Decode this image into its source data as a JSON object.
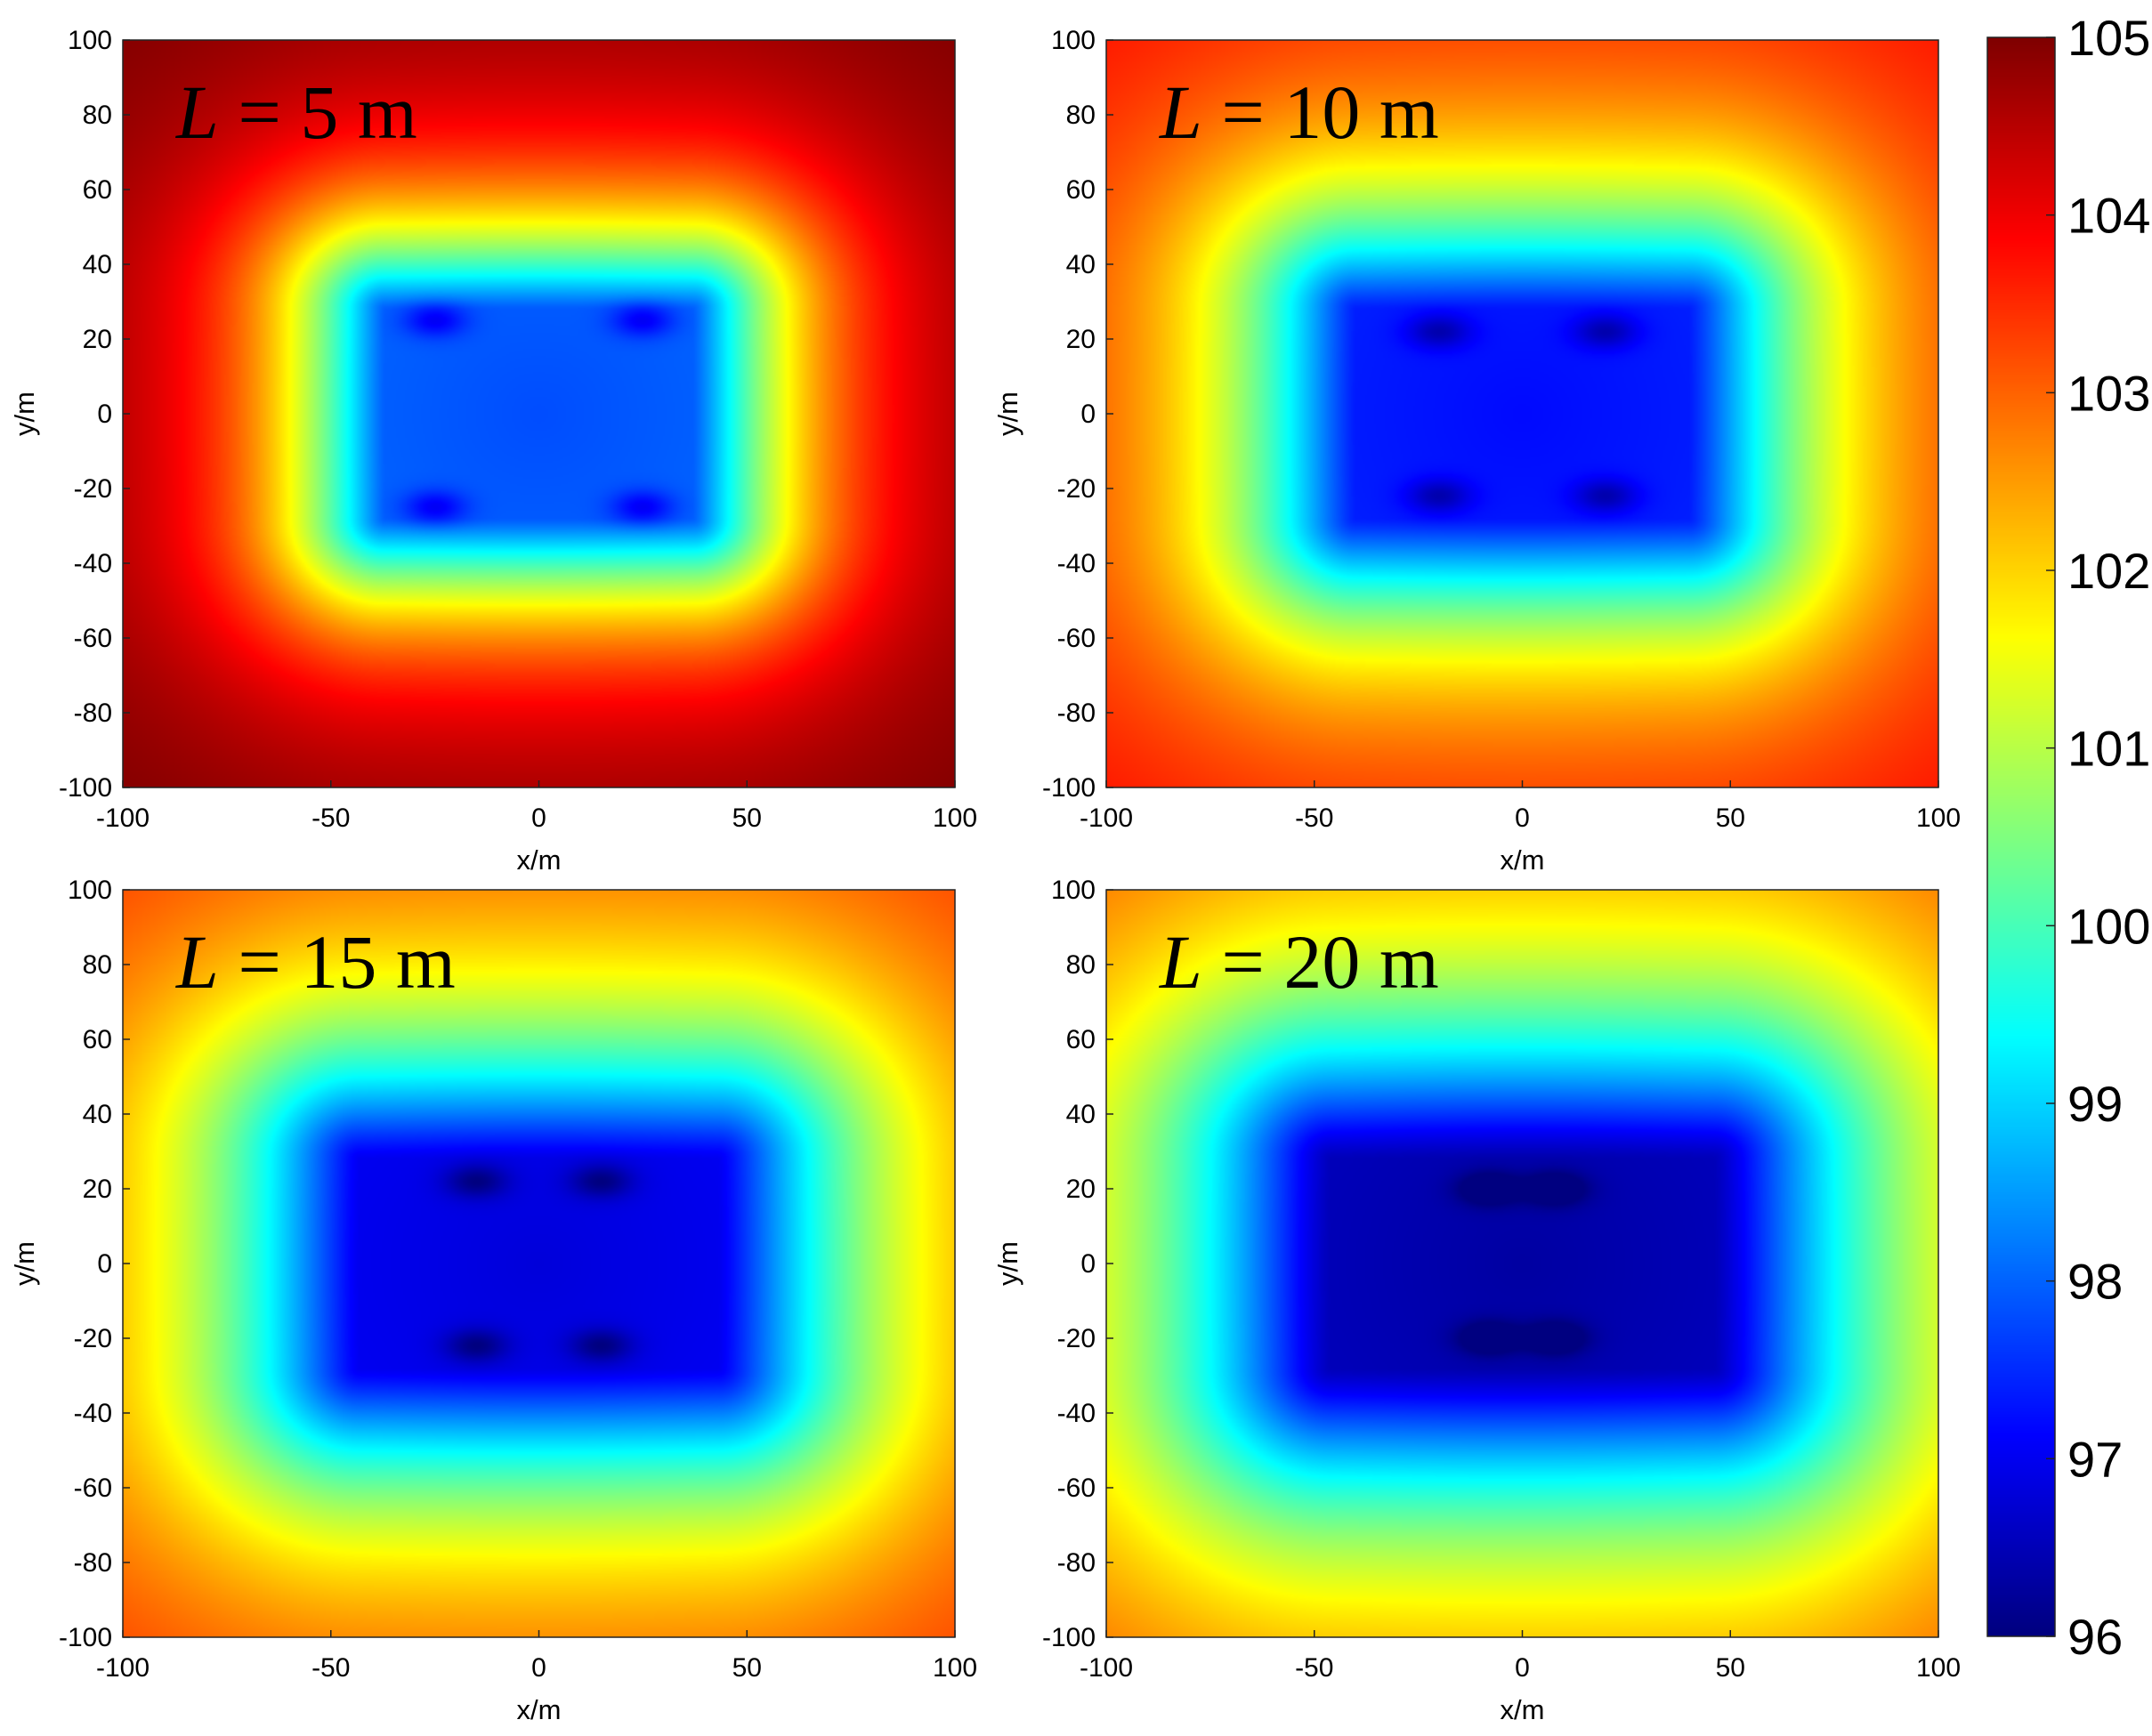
{
  "chart_data": {
    "type": "heatmap",
    "colormap": "jet",
    "colorbar": {
      "range": [
        96,
        105
      ],
      "ticks": [
        "96",
        "97",
        "98",
        "99",
        "100",
        "101",
        "102",
        "103",
        "104",
        "105"
      ]
    },
    "panels": [
      {
        "title_var": "L",
        "title_rest": " = 5 m",
        "L": 5,
        "xlabel": "x/m",
        "ylabel": "y/m",
        "xlim": [
          -100,
          100
        ],
        "ylim": [
          -100,
          100
        ],
        "xticks": [
          "-100",
          "-50",
          "0",
          "50",
          "100"
        ],
        "yticks": [
          "100",
          "80",
          "60",
          "40",
          "20",
          "0",
          "-20",
          "-40",
          "-60",
          "-80",
          "-100"
        ],
        "sources": [
          [
            -25,
            25
          ],
          [
            25,
            25
          ],
          [
            -25,
            -25
          ],
          [
            25,
            -25
          ]
        ],
        "center_value": 97.8,
        "corner_value": 105
      },
      {
        "title_var": "L",
        "title_rest": " = 10 m",
        "L": 10,
        "xlabel": "x/m",
        "ylabel": "y/m",
        "xlim": [
          -100,
          100
        ],
        "ylim": [
          -100,
          100
        ],
        "xticks": [
          "-100",
          "-50",
          "0",
          "50",
          "100"
        ],
        "yticks": [
          "100",
          "80",
          "60",
          "40",
          "20",
          "0",
          "-20",
          "-40",
          "-60",
          "-80",
          "-100"
        ],
        "sources": [
          [
            -20,
            22
          ],
          [
            20,
            22
          ],
          [
            -20,
            -22
          ],
          [
            20,
            -22
          ]
        ],
        "center_value": 97.2,
        "corner_value": 103.8
      },
      {
        "title_var": "L",
        "title_rest": " = 15 m",
        "L": 15,
        "xlabel": "x/m",
        "ylabel": "y/m",
        "xlim": [
          -100,
          100
        ],
        "ylim": [
          -100,
          100
        ],
        "xticks": [
          "-100",
          "-50",
          "0",
          "50",
          "100"
        ],
        "yticks": [
          "100",
          "80",
          "60",
          "40",
          "20",
          "0",
          "-20",
          "-40",
          "-60",
          "-80",
          "-100"
        ],
        "sources": [
          [
            -15,
            22
          ],
          [
            15,
            22
          ],
          [
            -15,
            -22
          ],
          [
            15,
            -22
          ]
        ],
        "center_value": 96.8,
        "corner_value": 103.5
      },
      {
        "title_var": "L",
        "title_rest": " = 20 m",
        "L": 20,
        "xlabel": "x/m",
        "ylabel": "y/m",
        "xlim": [
          -100,
          100
        ],
        "ylim": [
          -100,
          100
        ],
        "xticks": [
          "-100",
          "-50",
          "0",
          "50",
          "100"
        ],
        "yticks": [
          "100",
          "80",
          "60",
          "40",
          "20",
          "0",
          "-20",
          "-40",
          "-60",
          "-80",
          "-100"
        ],
        "sources": [
          [
            -8,
            20
          ],
          [
            8,
            20
          ],
          [
            -8,
            -20
          ],
          [
            8,
            -20
          ]
        ],
        "center_value": 96.3,
        "corner_value": 103.3
      }
    ]
  }
}
